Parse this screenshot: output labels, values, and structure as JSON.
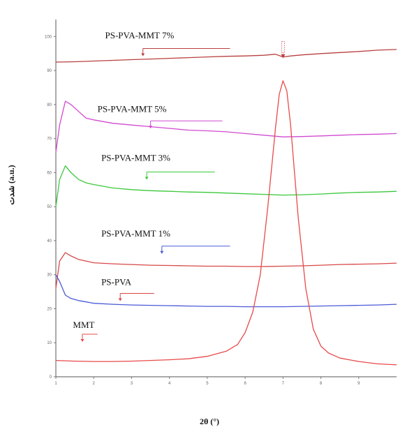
{
  "chart_data": {
    "type": "line",
    "xlabel": "2θ (°)",
    "ylabel": "شدت (a.u.)",
    "xlim": [
      1,
      10
    ],
    "ylim": [
      0,
      105
    ],
    "x_ticks": [
      "1",
      "2",
      "3",
      "4",
      "5",
      "6",
      "7",
      "8",
      "9"
    ],
    "y_ticks": [
      "0",
      "10",
      "20",
      "30",
      "40",
      "50",
      "60",
      "70",
      "80",
      "90",
      "100"
    ],
    "grid": false,
    "series": [
      {
        "name": "PS-PVA-MMT 7%",
        "color": "#b84040",
        "x": [
          1,
          1.5,
          2,
          2.5,
          3,
          3.5,
          4,
          4.5,
          5,
          5.5,
          6,
          6.5,
          6.8,
          7.0,
          7.2,
          7.5,
          8,
          8.5,
          9,
          9.5,
          10
        ],
        "y": [
          92.5,
          92.6,
          92.8,
          93.0,
          93.2,
          93.4,
          93.6,
          93.8,
          94.0,
          94.2,
          94.3,
          94.5,
          94.8,
          94.0,
          94.3,
          94.6,
          95.0,
          95.3,
          95.6,
          96.0,
          96.2
        ]
      },
      {
        "name": "PS-PVA-MMT 5%",
        "color": "#d04ad0",
        "x": [
          1,
          1.1,
          1.25,
          1.4,
          1.6,
          1.8,
          2,
          2.5,
          3,
          3.5,
          4,
          4.5,
          5,
          5.5,
          6,
          6.5,
          7,
          7.5,
          8,
          8.5,
          9,
          9.5,
          10
        ],
        "y": [
          66,
          74,
          81,
          80,
          78,
          76,
          75.5,
          74.5,
          74,
          73.5,
          73,
          72.5,
          72.3,
          72.0,
          71.5,
          71.0,
          70.5,
          70.6,
          70.8,
          71.0,
          71.2,
          71.3,
          71.5
        ]
      },
      {
        "name": "PS-PVA-MMT 3%",
        "color": "#3cc83c",
        "x": [
          1,
          1.1,
          1.25,
          1.4,
          1.6,
          1.8,
          2,
          2.5,
          3,
          3.5,
          4,
          4.5,
          5,
          5.5,
          6,
          6.5,
          7,
          7.5,
          8,
          8.5,
          9,
          9.5,
          10
        ],
        "y": [
          50,
          58,
          62,
          60,
          58,
          57,
          56.5,
          55.5,
          55,
          54.7,
          54.5,
          54.3,
          54.2,
          54.0,
          53.8,
          53.6,
          53.4,
          53.5,
          53.7,
          54.0,
          54.2,
          54.3,
          54.5
        ]
      },
      {
        "name": "PS-PVA-MMT 1%",
        "color": "#d84848",
        "x": [
          1,
          1.1,
          1.25,
          1.4,
          1.6,
          1.8,
          2,
          2.5,
          3,
          3.5,
          4,
          4.5,
          5,
          5.5,
          6,
          6.5,
          7,
          7.5,
          8,
          8.5,
          9,
          9.5,
          10
        ],
        "y": [
          26,
          34,
          36.5,
          35.5,
          34.5,
          34.0,
          33.5,
          33.2,
          33.0,
          32.8,
          32.7,
          32.6,
          32.5,
          32.5,
          32.4,
          32.4,
          32.5,
          32.6,
          32.8,
          33.0,
          33.1,
          33.2,
          33.4
        ]
      },
      {
        "name": "PS-PVA",
        "color": "#4a5ad8",
        "x": [
          1,
          1.1,
          1.25,
          1.4,
          1.6,
          1.8,
          2,
          2.5,
          3,
          3.5,
          4,
          4.5,
          5,
          5.5,
          6,
          6.5,
          7,
          7.5,
          8,
          8.5,
          9,
          9.5,
          10
        ],
        "y": [
          30,
          28,
          24,
          23,
          22.4,
          22.0,
          21.6,
          21.3,
          21.1,
          21.0,
          20.9,
          20.8,
          20.7,
          20.7,
          20.6,
          20.6,
          20.6,
          20.7,
          20.8,
          20.9,
          21.0,
          21.1,
          21.3
        ]
      },
      {
        "name": "MMT",
        "color": "#e84a4a",
        "x": [
          1,
          1.5,
          2,
          2.5,
          3,
          3.5,
          4,
          4.5,
          5,
          5.5,
          5.8,
          6.0,
          6.2,
          6.4,
          6.6,
          6.8,
          6.9,
          7.0,
          7.1,
          7.2,
          7.4,
          7.6,
          7.8,
          8.0,
          8.2,
          8.5,
          9,
          9.5,
          10
        ],
        "y": [
          4.8,
          4.6,
          4.5,
          4.5,
          4.6,
          4.8,
          5.0,
          5.3,
          6.0,
          7.5,
          9.5,
          13,
          19,
          30,
          50,
          73,
          83,
          87,
          84,
          74,
          47,
          26,
          14,
          9,
          7,
          5.5,
          4.5,
          3.8,
          3.5
        ]
      }
    ],
    "series_labels": [
      "PS-PVA-MMT 7%",
      "PS-PVA-MMT 5%",
      "PS-PVA-MMT 3%",
      "PS-PVA-MMT 1%",
      "PS-PVA",
      "MMT"
    ]
  }
}
